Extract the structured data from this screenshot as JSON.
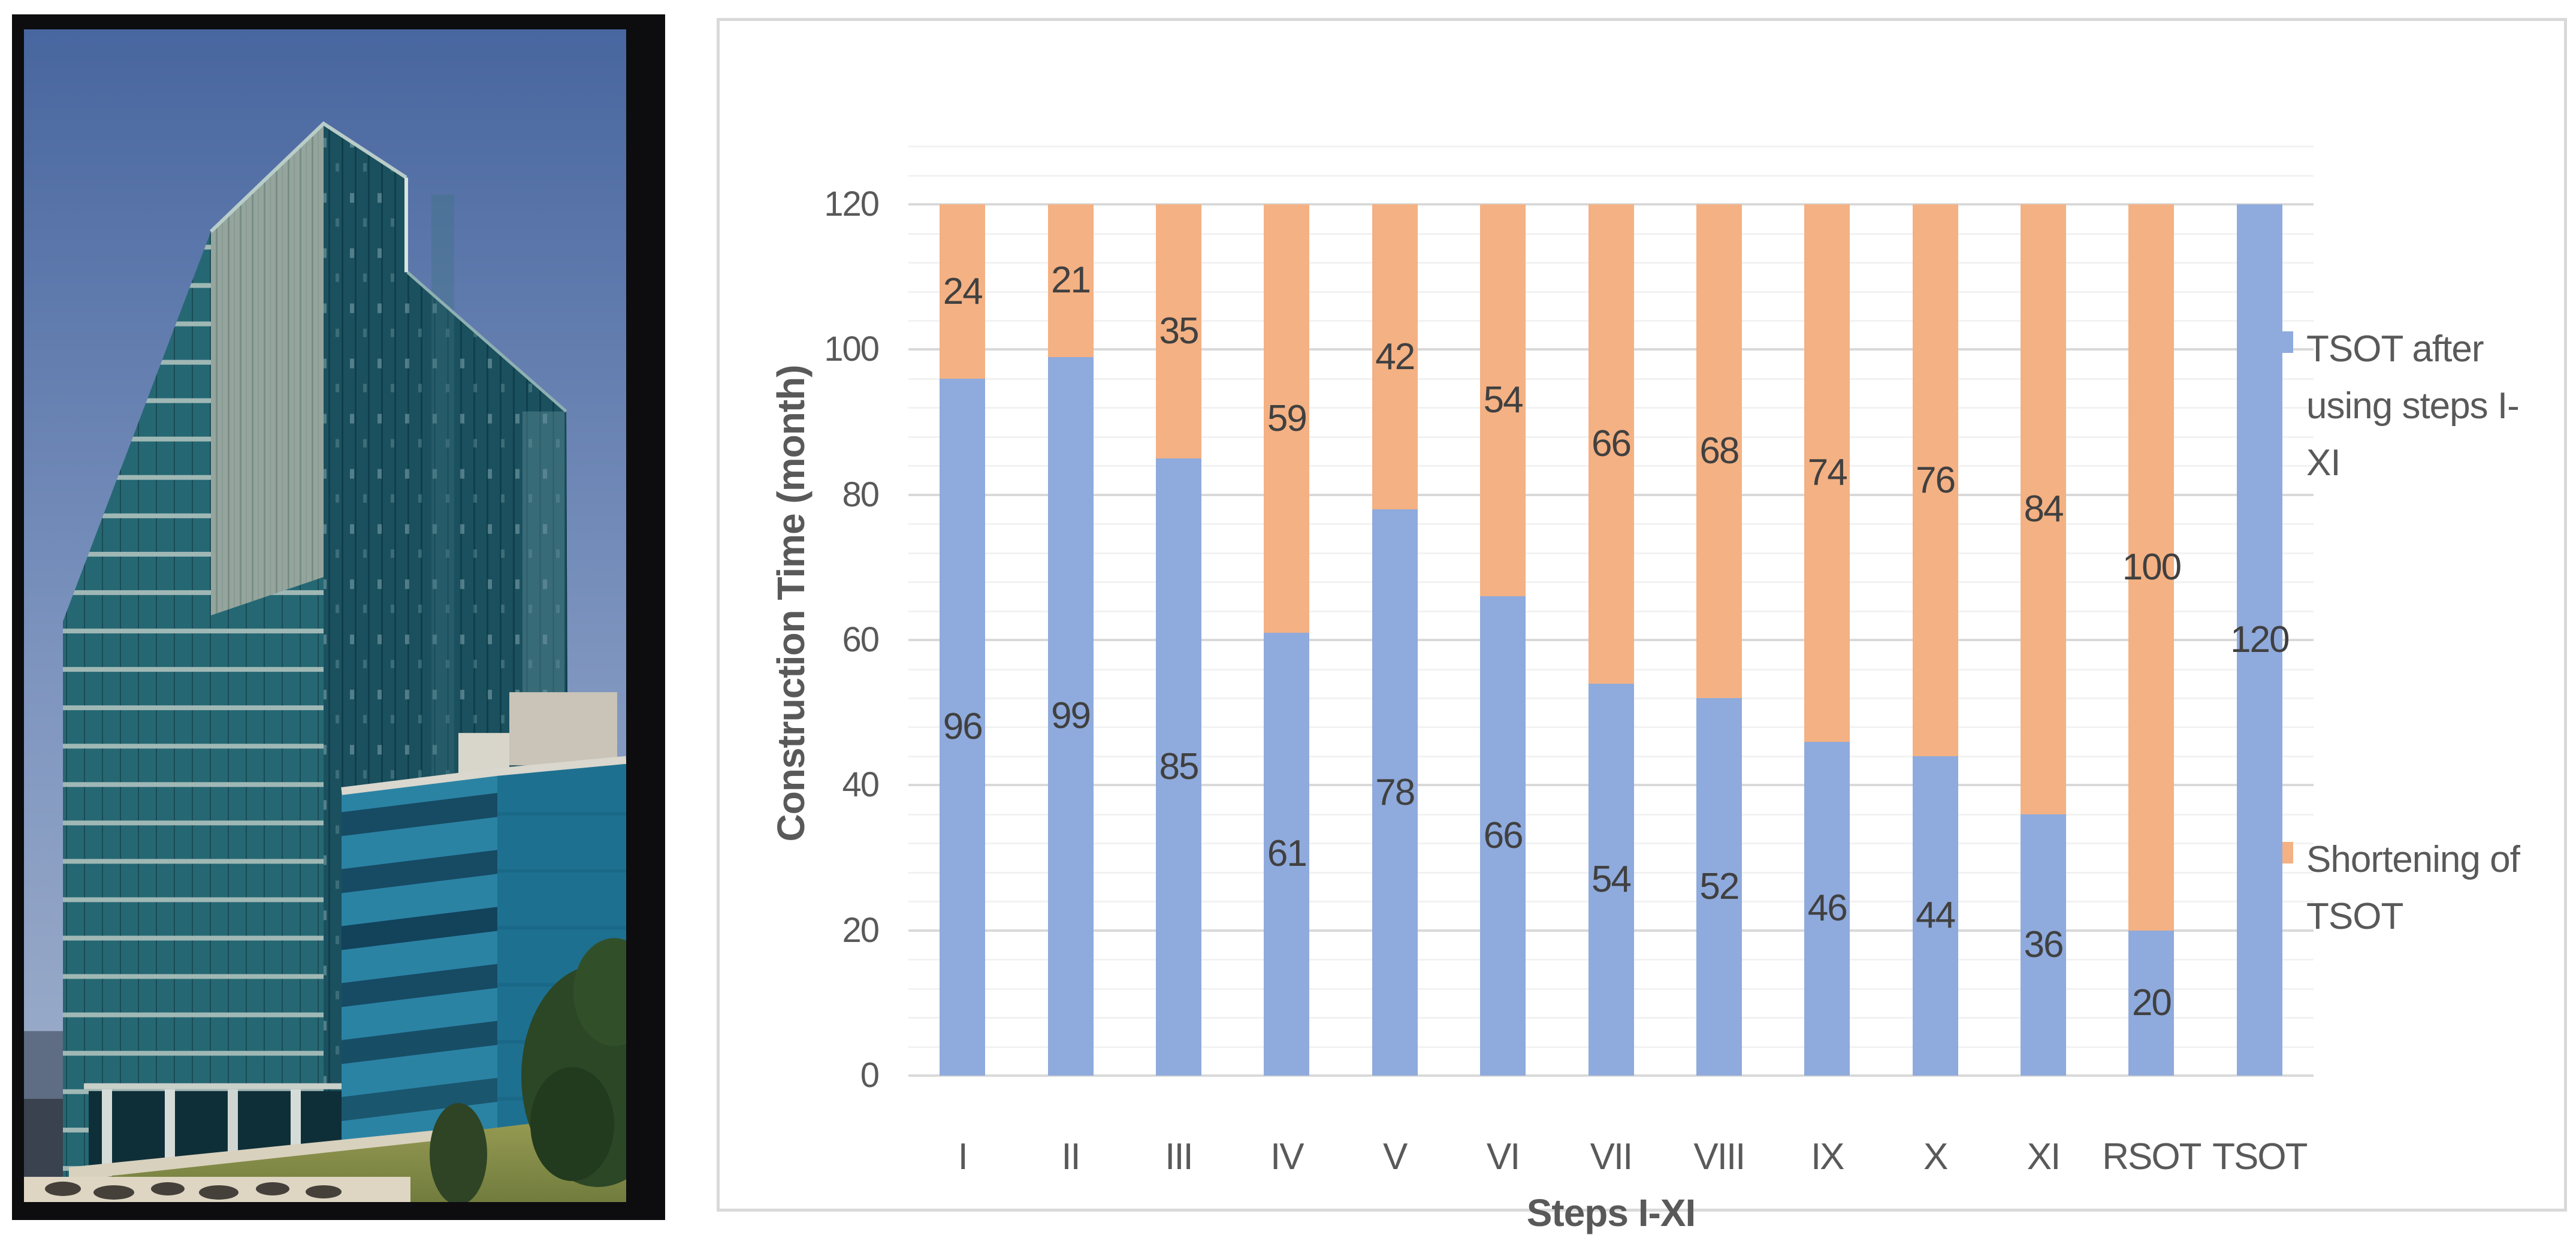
{
  "figure": {
    "left_panel": "building-photo",
    "right_panel": "stacked-bar-chart"
  },
  "photo": {
    "subject": "glass office tower with lower annex building, lawn and tree",
    "palette": {
      "sky_top": "#48669f",
      "sky_bottom": "#a3b2cc",
      "tower_glass": "#1b505e",
      "tower_left_wing": "#256874",
      "tower_gray_top": "#95a59d",
      "annex": "#2b83a4",
      "roof_box": "#c9c4b7",
      "tree": "#2c4726",
      "grass": "#8a8f4c",
      "path": "#d8d1bd",
      "frame": "#0d0d10"
    }
  },
  "chart_data": {
    "type": "bar",
    "stacked": true,
    "title": "",
    "categories": [
      "I",
      "II",
      "III",
      "IV",
      "V",
      "VI",
      "VII",
      "VIII",
      "IX",
      "X",
      "XI",
      "RSOT",
      "TSOT"
    ],
    "series": [
      {
        "name": "TSOT after using steps I-XI",
        "color": "#8FAADC",
        "values": [
          96,
          99,
          85,
          61,
          78,
          66,
          54,
          52,
          46,
          44,
          36,
          20,
          120
        ]
      },
      {
        "name": "Shortening of TSOT",
        "color": "#F4B183",
        "values": [
          24,
          21,
          35,
          59,
          42,
          54,
          66,
          68,
          74,
          76,
          84,
          100,
          0
        ]
      }
    ],
    "xlabel": "Steps I-XI",
    "ylabel": "Construction Time (month)",
    "ylim": [
      0,
      130
    ],
    "bar_max": 120,
    "yticks": [
      0,
      20,
      40,
      60,
      80,
      100,
      120
    ],
    "major_unit": 20,
    "minor_unit": 4,
    "grid": true,
    "legend_position": "right",
    "data_labels": "center",
    "colors": {
      "axis_text": "#595959",
      "data_label": "#404040",
      "gridline_major": "#D9D9D9",
      "gridline_minor": "#F2F2F2",
      "chart_border": "#D9D9D9"
    }
  }
}
